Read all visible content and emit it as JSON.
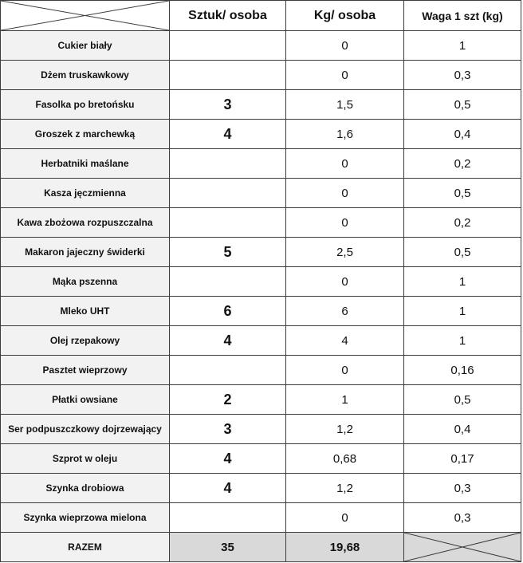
{
  "table": {
    "header": [
      "Sztuk/ osoba",
      "Kg/ osoba",
      "Waga 1 szt (kg)"
    ],
    "rows": [
      [
        "Cukier biały",
        null,
        "0",
        "1"
      ],
      [
        "Dżem truskawkowy",
        null,
        "0",
        "0,3"
      ],
      [
        "Fasolka po bretońsku",
        "3",
        "1,5",
        "0,5"
      ],
      [
        "Groszek z marchewką",
        "4",
        "1,6",
        "0,4"
      ],
      [
        "Herbatniki maślane",
        null,
        "0",
        "0,2"
      ],
      [
        "Kasza jęczmienna",
        null,
        "0",
        "0,5"
      ],
      [
        "Kawa zbożowa rozpuszczalna",
        null,
        "0",
        "0,2"
      ],
      [
        "Makaron jajeczny świderki",
        "5",
        "2,5",
        "0,5"
      ],
      [
        "Mąka pszenna",
        null,
        "0",
        "1"
      ],
      [
        "Mleko UHT",
        "6",
        "6",
        "1"
      ],
      [
        "Olej rzepakowy",
        "4",
        "4",
        "1"
      ],
      [
        "Pasztet wieprzowy",
        null,
        "0",
        "0,16"
      ],
      [
        "Płatki owsiane",
        "2",
        "1",
        "0,5"
      ],
      [
        "Ser podpuszczkowy dojrzewający",
        "3",
        "1,2",
        "0,4"
      ],
      [
        "Szprot w oleju",
        "4",
        "0,68",
        "0,17"
      ],
      [
        "Szynka drobiowa",
        "4",
        "1,2",
        "0,3"
      ],
      [
        "Szynka wieprzowa mielona",
        null,
        "0",
        "0,3"
      ]
    ],
    "total": [
      "RAZEM",
      "35",
      "19,68"
    ]
  }
}
